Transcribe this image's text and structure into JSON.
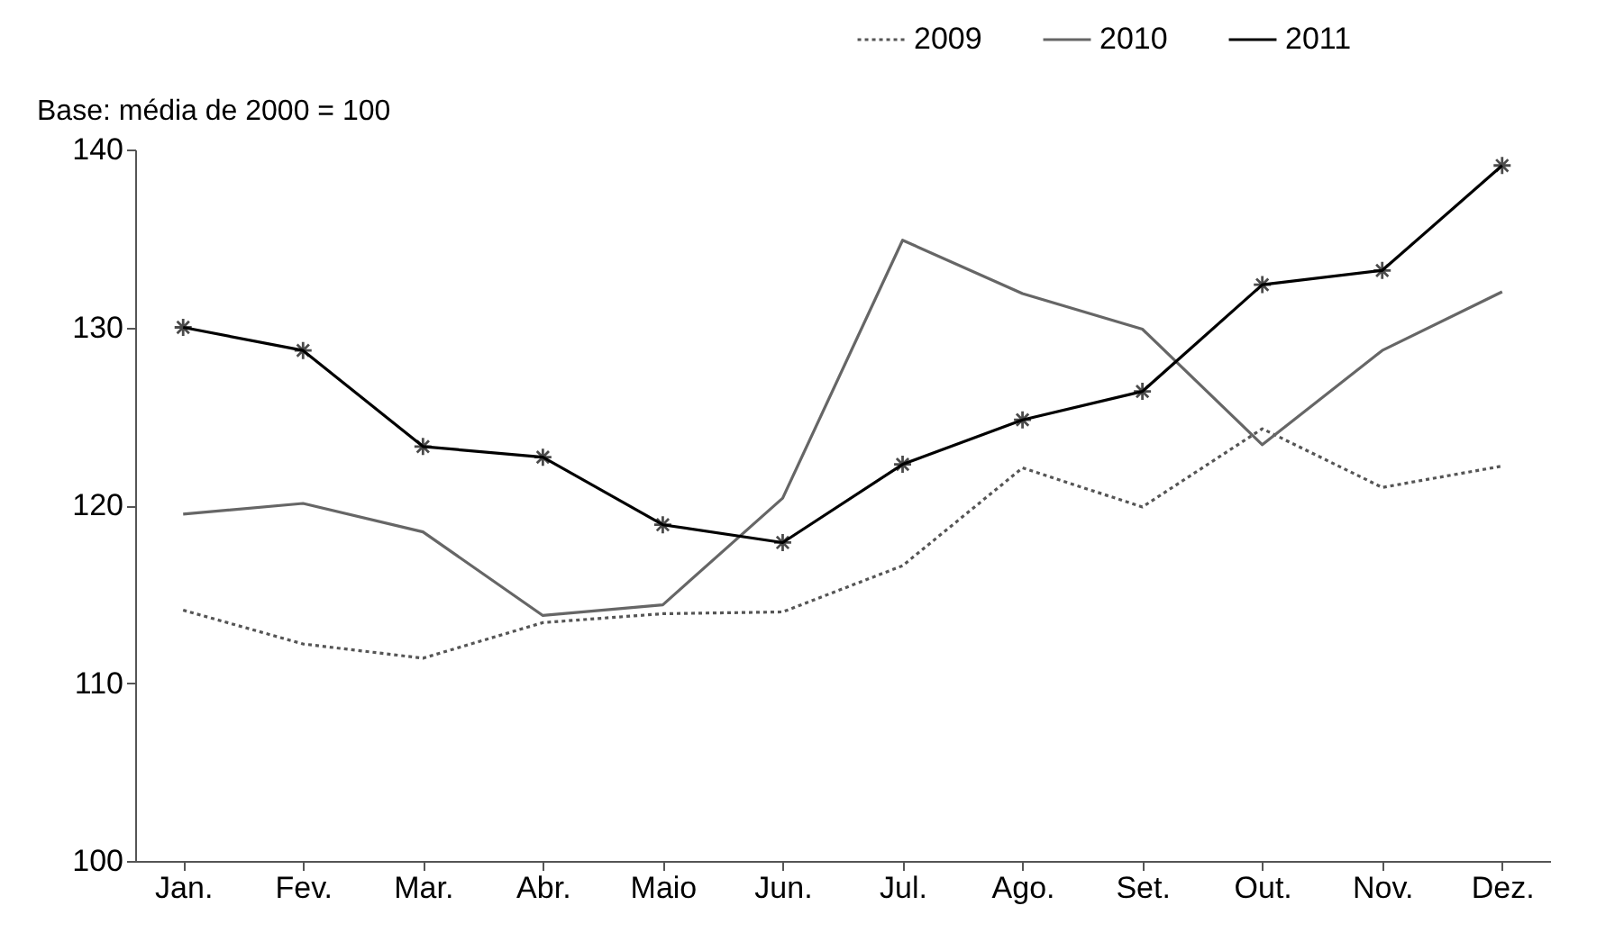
{
  "chart_data": {
    "type": "line",
    "ylabel": "Base: média de 2000 = 100",
    "categories": [
      "Jan.",
      "Fev.",
      "Mar.",
      "Abr.",
      "Maio",
      "Jun.",
      "Jul.",
      "Ago.",
      "Set.",
      "Out.",
      "Nov.",
      "Dez."
    ],
    "series": [
      {
        "name": "2009",
        "color": "#555555",
        "line_style": "dotted",
        "marker": "none",
        "values": [
          114.1,
          112.2,
          111.4,
          113.4,
          113.9,
          114.0,
          116.6,
          122.1,
          119.9,
          124.3,
          121.0,
          122.2
        ]
      },
      {
        "name": "2010",
        "color": "#666666",
        "line_style": "solid",
        "marker": "none",
        "values": [
          119.5,
          120.1,
          118.5,
          113.8,
          114.4,
          120.4,
          134.9,
          131.9,
          129.9,
          123.4,
          128.7,
          132.0
        ]
      },
      {
        "name": "2011",
        "color": "#000000",
        "line_style": "solid",
        "marker": "cross",
        "values": [
          130.0,
          128.7,
          123.3,
          122.7,
          118.9,
          117.9,
          122.3,
          124.8,
          126.4,
          132.4,
          133.2,
          139.1
        ]
      }
    ],
    "ylim": [
      100,
      140
    ],
    "yticks": [
      100,
      110,
      120,
      130,
      140
    ],
    "grid": false,
    "legend": "top right"
  }
}
